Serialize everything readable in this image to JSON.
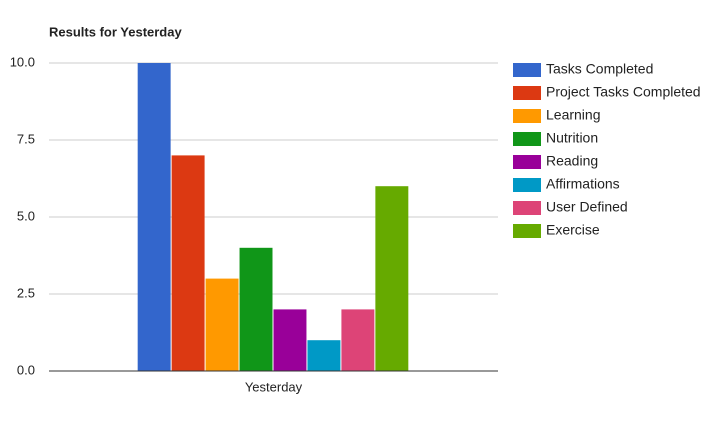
{
  "chart_data": {
    "type": "bar",
    "title": "Results for Yesterday",
    "categories": [
      "Yesterday"
    ],
    "series": [
      {
        "name": "Tasks Completed",
        "color": "#3366cc",
        "values": [
          10
        ]
      },
      {
        "name": "Project Tasks Completed",
        "color": "#dc3912",
        "values": [
          7
        ]
      },
      {
        "name": "Learning",
        "color": "#ff9900",
        "values": [
          3
        ]
      },
      {
        "name": "Nutrition",
        "color": "#109618",
        "values": [
          4
        ]
      },
      {
        "name": "Reading",
        "color": "#990099",
        "values": [
          2
        ]
      },
      {
        "name": "Affirmations",
        "color": "#0099c6",
        "values": [
          1
        ]
      },
      {
        "name": "User Defined",
        "color": "#dd4477",
        "values": [
          2
        ]
      },
      {
        "name": "Exercise",
        "color": "#66aa00",
        "values": [
          6
        ]
      }
    ],
    "ylim": [
      0,
      10
    ],
    "yticks": [
      {
        "value": 0,
        "label": "0.0"
      },
      2.5,
      {
        "value": 5,
        "label": "5.0"
      },
      7.5,
      {
        "value": 10,
        "label": "10.0"
      }
    ],
    "grid": true,
    "legend": "right"
  }
}
